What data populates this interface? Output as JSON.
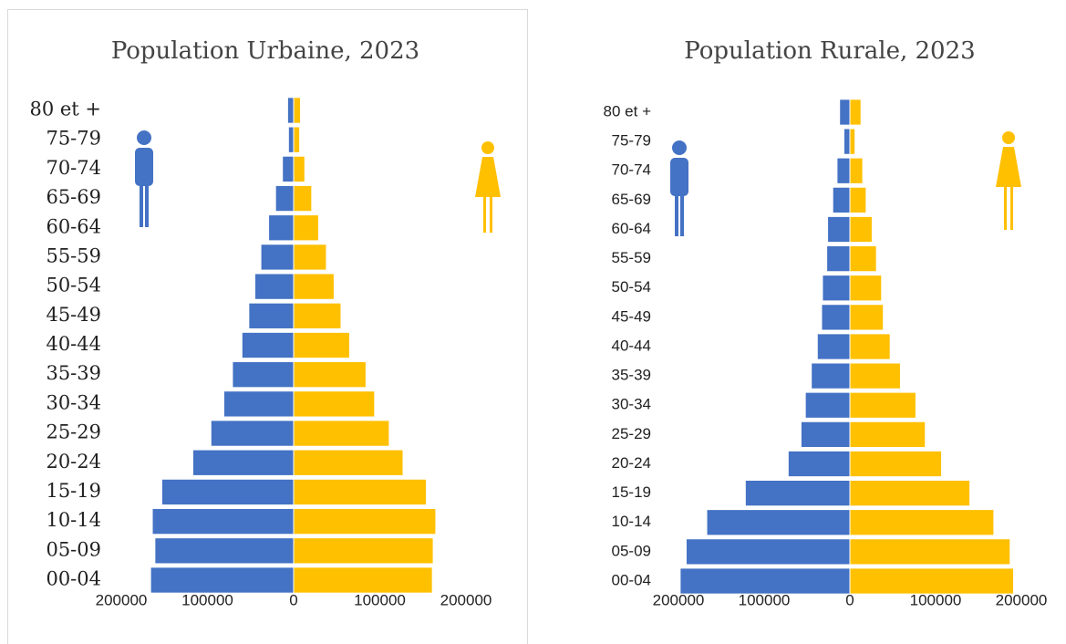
{
  "chart_data": [
    {
      "type": "pyramid",
      "title": "Population Urbaine, 2023",
      "categories": [
        "00-04",
        "05-09",
        "10-14",
        "15-19",
        "20-24",
        "25-29",
        "30-34",
        "35-39",
        "40-44",
        "45-49",
        "50-54",
        "55-59",
        "60-64",
        "65-69",
        "70-74",
        "75-79",
        "80 et +"
      ],
      "series": [
        {
          "color": "#4472c4",
          "values": [
            -166000,
            -161000,
            -164000,
            -153000,
            -117000,
            -96000,
            -81000,
            -71000,
            -60000,
            -52000,
            -45000,
            -38000,
            -29000,
            -21000,
            -13000,
            -6000,
            -7000
          ]
        },
        {
          "color": "#ffc000",
          "values": [
            161000,
            162000,
            165000,
            154000,
            127000,
            111000,
            94000,
            84000,
            65000,
            55000,
            47000,
            38000,
            29000,
            21000,
            13000,
            7000,
            8000
          ]
        }
      ],
      "xlim": [
        -200000,
        200000
      ],
      "xticks": [
        {
          "value": -200000,
          "label": "200000"
        },
        {
          "value": -100000,
          "label": "100000"
        },
        0,
        100000,
        200000
      ]
    },
    {
      "type": "pyramid",
      "title": "Population Rurale, 2023",
      "categories": [
        "00-04",
        "05-09",
        "10-14",
        "15-19",
        "20-24",
        "25-29",
        "30-34",
        "35-39",
        "40-44",
        "45-49",
        "50-54",
        "55-59",
        "60-64",
        "65-69",
        "70-74",
        "75-79",
        "80 et +"
      ],
      "series": [
        {
          "color": "#4472c4",
          "values": [
            -198000,
            -191000,
            -167000,
            -122000,
            -72000,
            -57000,
            -52000,
            -45000,
            -38000,
            -33000,
            -32000,
            -27000,
            -26000,
            -20000,
            -15000,
            -7000,
            -12000
          ]
        },
        {
          "color": "#ffc000",
          "values": [
            191000,
            187000,
            168000,
            140000,
            107000,
            88000,
            77000,
            59000,
            47000,
            39000,
            37000,
            31000,
            26000,
            19000,
            15000,
            6000,
            13000
          ]
        }
      ],
      "xlim": [
        -200000,
        200000
      ],
      "xticks": [
        {
          "value": -200000,
          "label": "200000"
        },
        {
          "value": -100000,
          "label": "100000"
        },
        0,
        100000,
        200000
      ]
    }
  ]
}
